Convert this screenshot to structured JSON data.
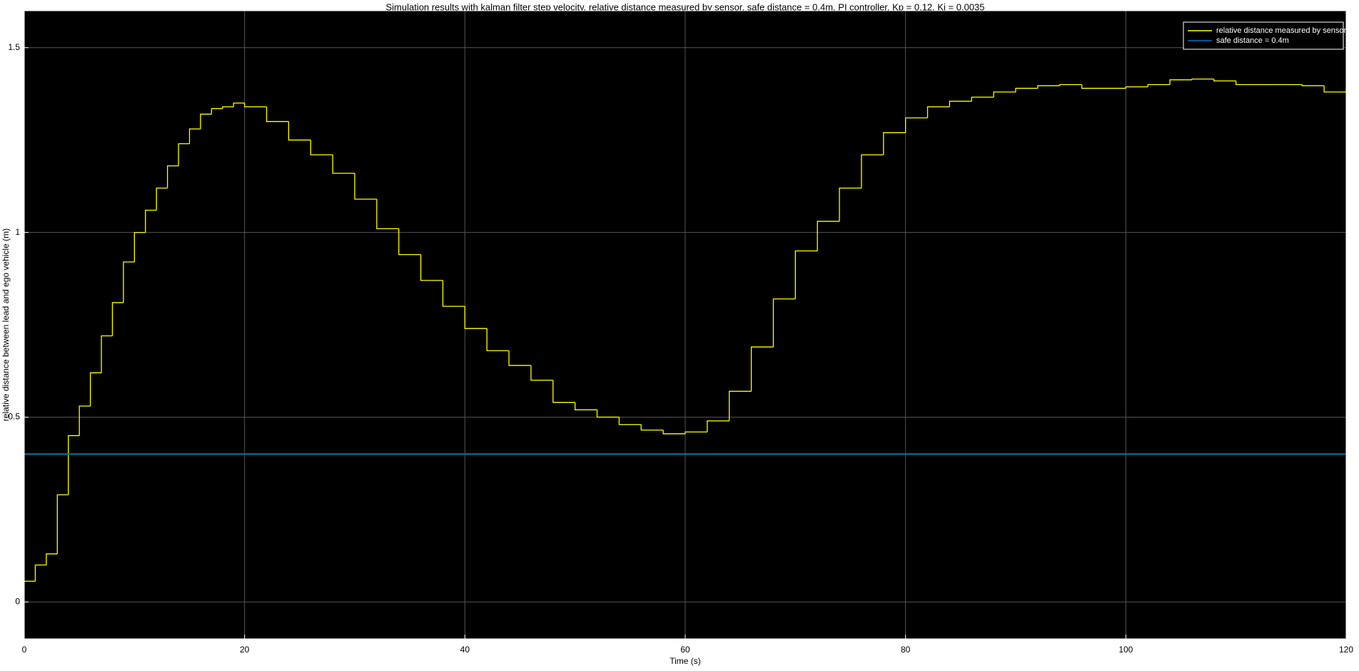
{
  "chart_data": {
    "type": "line",
    "step": "post",
    "title": "Simulation results with kalman filter step velocity, relative distance measured by sensor, safe distance = 0.4m, PI controller, Kp = 0.12, Ki = 0.0035",
    "xlabel": "Time (s)",
    "ylabel": "relative distance between lead and ego vehicle (m)",
    "xlim": [
      0,
      120
    ],
    "ylim": [
      -0.1,
      1.6
    ],
    "xticks": [
      0,
      20,
      40,
      60,
      80,
      100,
      120
    ],
    "yticks": [
      0,
      0.5,
      1,
      1.5
    ],
    "grid": true,
    "legend": "upper right",
    "series": [
      {
        "name": "relative distance measured by sensor",
        "color": "#ffff00",
        "x": [
          0,
          1,
          2,
          3,
          4,
          5,
          6,
          7,
          8,
          9,
          10,
          11,
          12,
          13,
          14,
          15,
          16,
          17,
          18,
          19,
          20,
          22,
          24,
          26,
          28,
          30,
          32,
          34,
          36,
          38,
          40,
          42,
          44,
          46,
          48,
          50,
          52,
          54,
          56,
          58,
          60,
          62,
          64,
          66,
          68,
          70,
          72,
          74,
          76,
          78,
          80,
          82,
          84,
          86,
          88,
          90,
          92,
          94,
          96,
          98,
          100,
          102,
          104,
          106,
          108,
          110,
          112,
          114,
          116,
          118,
          120
        ],
        "values": [
          0.056,
          0.1,
          0.13,
          0.29,
          0.45,
          0.53,
          0.62,
          0.72,
          0.81,
          0.92,
          1.0,
          1.06,
          1.12,
          1.18,
          1.24,
          1.28,
          1.32,
          1.335,
          1.34,
          1.35,
          1.34,
          1.3,
          1.25,
          1.21,
          1.16,
          1.09,
          1.01,
          0.94,
          0.87,
          0.8,
          0.74,
          0.68,
          0.64,
          0.6,
          0.54,
          0.52,
          0.5,
          0.48,
          0.465,
          0.455,
          0.46,
          0.49,
          0.57,
          0.69,
          0.82,
          0.95,
          1.03,
          1.12,
          1.21,
          1.27,
          1.31,
          1.34,
          1.355,
          1.366,
          1.38,
          1.39,
          1.397,
          1.4,
          1.39,
          1.39,
          1.394,
          1.4,
          1.413,
          1.415,
          1.41,
          1.4,
          1.4,
          1.4,
          1.397,
          1.38,
          1.39
        ]
      },
      {
        "name": "safe distance = 0.4m",
        "color": "#0072bd",
        "x": [
          0,
          120
        ],
        "values": [
          0.4,
          0.4
        ]
      }
    ]
  }
}
